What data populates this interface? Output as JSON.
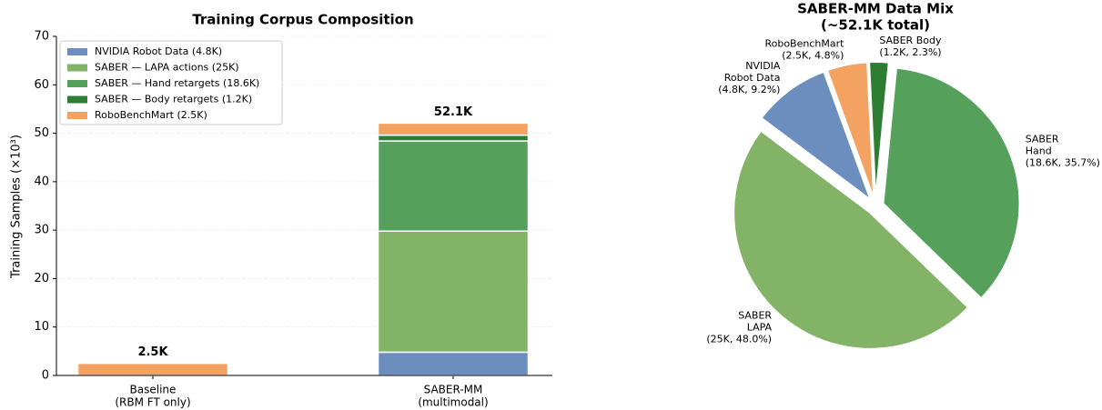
{
  "chart_data": [
    {
      "type": "stacked_bar",
      "title": "Training Corpus Composition",
      "ylabel": "Training Samples (×10³)",
      "categories": [
        [
          "Baseline",
          "(RBM FT only)"
        ],
        [
          "SABER-MM",
          "(multimodal)"
        ]
      ],
      "series": [
        {
          "name": "NVIDIA Robot Data (4.8K)",
          "color": "#6c8ebf",
          "values": [
            0,
            4.8
          ]
        },
        {
          "name": "SABER — LAPA actions (25K)",
          "color": "#82b366",
          "values": [
            0,
            25
          ]
        },
        {
          "name": "SABER — Hand retargets (18.6K)",
          "color": "#55a05a",
          "values": [
            0,
            18.6
          ]
        },
        {
          "name": "SABER — Body retargets (1.2K)",
          "color": "#2e7d32",
          "values": [
            0,
            1.2
          ]
        },
        {
          "name": "RoboBenchMart (2.5K)",
          "color": "#f4a261",
          "values": [
            2.5,
            2.5
          ]
        }
      ],
      "totals": [
        {
          "value": 2.5,
          "label": "2.5K"
        },
        {
          "value": 52.1,
          "label": "52.1K"
        }
      ],
      "ylim": [
        0,
        70
      ],
      "yticks": [
        0,
        10,
        20,
        30,
        40,
        50,
        60,
        70
      ],
      "grid": true,
      "legend": "upper left"
    },
    {
      "type": "pie",
      "title": [
        "SABER-MM Data Mix",
        "(~52.1K total)"
      ],
      "labels": [
        [
          "NVIDIA",
          "Robot Data",
          "(4.8K, 9.2%)"
        ],
        [
          "SABER",
          "LAPA",
          "(25K, 48.0%)"
        ],
        [
          "SABER",
          "Hand",
          "(18.6K, 35.7%)"
        ],
        [
          "SABER Body",
          "(1.2K, 2.3%)"
        ],
        [
          "RoboBenchMart",
          "(2.5K, 4.8%)"
        ]
      ],
      "values": [
        9.2,
        48.0,
        35.7,
        2.3,
        4.8
      ],
      "colors": [
        "#6c8ebf",
        "#82b366",
        "#55a05a",
        "#2e7d32",
        "#f4a261"
      ]
    }
  ]
}
